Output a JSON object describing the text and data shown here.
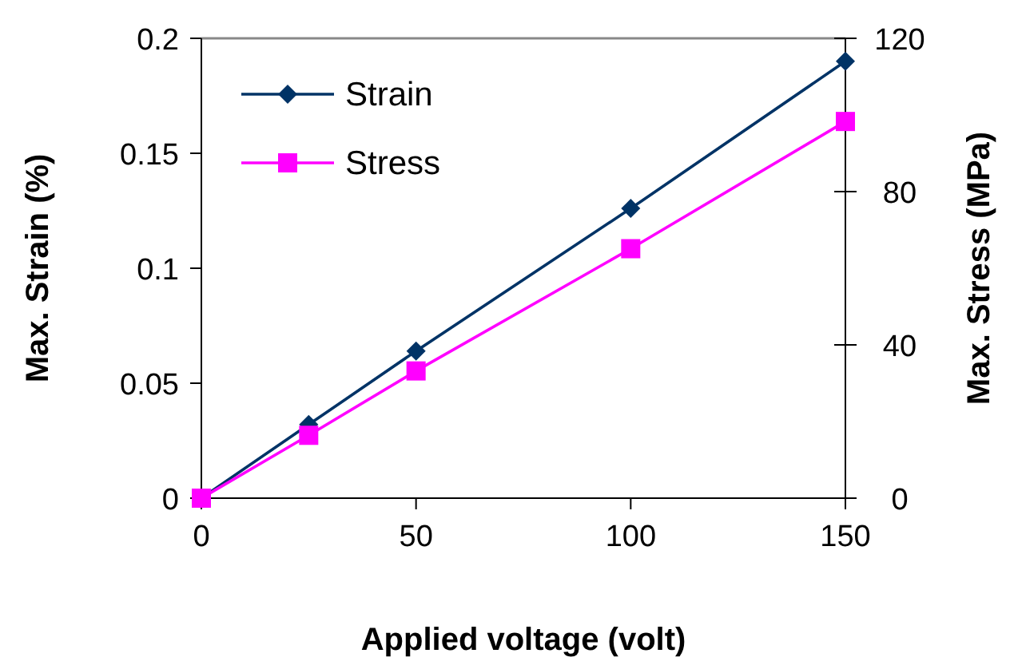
{
  "chart_data": {
    "type": "line",
    "xlabel": "Applied voltage (volt)",
    "ylabel": "Max. Strain (%)",
    "y2label": "Max. Stress (MPa)",
    "x": [
      0,
      25,
      50,
      100,
      150
    ],
    "xlim": [
      0,
      150
    ],
    "xticks": [
      0,
      50,
      100,
      150
    ],
    "ylim": [
      0,
      0.2
    ],
    "yticks": [
      0,
      0.05,
      0.1,
      0.15,
      0.2
    ],
    "y2lim": [
      0,
      120
    ],
    "y2ticks": [
      0,
      40,
      80,
      120
    ],
    "grid": false,
    "legend": "top left",
    "series": [
      {
        "name": "Strain",
        "color": "#003366",
        "marker": "diamond",
        "values": [
          0,
          0.032,
          0.064,
          0.126,
          0.19
        ]
      },
      {
        "name": "Stress",
        "color": "#ff00ff",
        "marker": "square",
        "axis": "y2",
        "values": [
          0,
          16.4,
          33.2,
          65.1,
          98.3
        ]
      }
    ]
  }
}
